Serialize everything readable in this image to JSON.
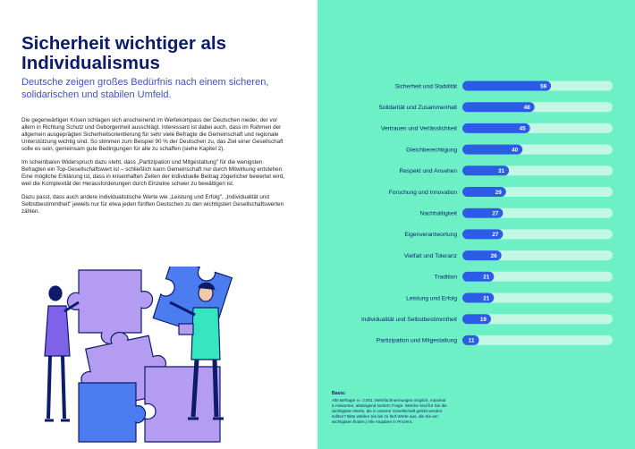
{
  "left": {
    "title": "Sicherheit wichtiger als Individualismus",
    "subtitle": "Deutsche zeigen großes Bedürfnis nach einem sicheren, solidarischen und stabilen Umfeld.",
    "paragraphs": [
      "Die gegenwärtigen Krisen schlagen sich anscheinend im Wertekompass der Deutschen nieder, der vor allem in Richtung Schutz und Geborgenheit ausschlägt. Interessant ist dabei auch, dass im Rahmen der allgemein ausgeprägten Sicherheitsorientierung für sehr viele Befragte die Gemeinschaft und regionale Unterstützung wichtig sind. So stimmen zum Beispiel 90 % der Deutschen zu, das Ziel einer Gesellschaft solle es sein, gemeinsam gute Bedingungen für alle zu schaffen (siehe Kapitel 2).",
      "Im scheinbaren Widerspruch dazu steht, dass „Partizipation und Mitgestaltung\" für die wenigsten Befragten ein Top-Gesellschaftswert ist – schließlich kann Gemeinschaft nur durch Mitwirkung entstehen. Eine mögliche Erklärung ist, dass in krisenhaften Zeiten der individuelle Beitrag zögerlicher bewertet wird, weil die Komplexität der Herausforderungen durch Einzelne schwer zu bewältigen ist.",
      "Dazu passt, dass auch andere individualistische Werte wie „Leistung und Erfolg\", „Individualität und Selbstbestimmtheit\" jeweils nur für etwa jeden fünften Deutschen zu den wichtigsten Gesellschaftswerten zählen."
    ]
  },
  "basis": {
    "title": "Basis:",
    "text": "Alle Befragte n= 2.001; Mehrfachnennungen möglich, maximal 5 Antworten, absteigend sortiert; Frage: Welche sind für Sie die wichtigsten Werte, die in unserer Gesellschaft gelebt werden sollten? Bitte wählen Sie bis zu fünf Werte aus, die Sie am wichtigsten finden.| Alle Angaben in Prozent."
  },
  "colors": {
    "background_right": "#6ef0c6",
    "bar": "#2b5ce6",
    "track": "#c2f7e3",
    "title": "#0d1b6b",
    "subtitle": "#3f51c4"
  },
  "chart_data": {
    "type": "bar",
    "orientation": "horizontal",
    "xlim": [
      0,
      100
    ],
    "unit": "Prozent",
    "categories": [
      "Sicherheit und Stabilität",
      "Solidarität und Zusammenhalt",
      "Vertrauen und Verlässlichkeit",
      "Gleichberechtigung",
      "Respekt und Ansehen",
      "Forschung und Innovation",
      "Nachhaltigkeit",
      "Eigenverantwortung",
      "Vielfalt und Toleranz",
      "Tradition",
      "Leistung und Erfolg",
      "Individualität und Selbstbestimmtheit",
      "Partizipation und Mitgestaltung"
    ],
    "values": [
      59,
      48,
      45,
      40,
      31,
      29,
      27,
      27,
      26,
      21,
      21,
      19,
      11
    ]
  }
}
